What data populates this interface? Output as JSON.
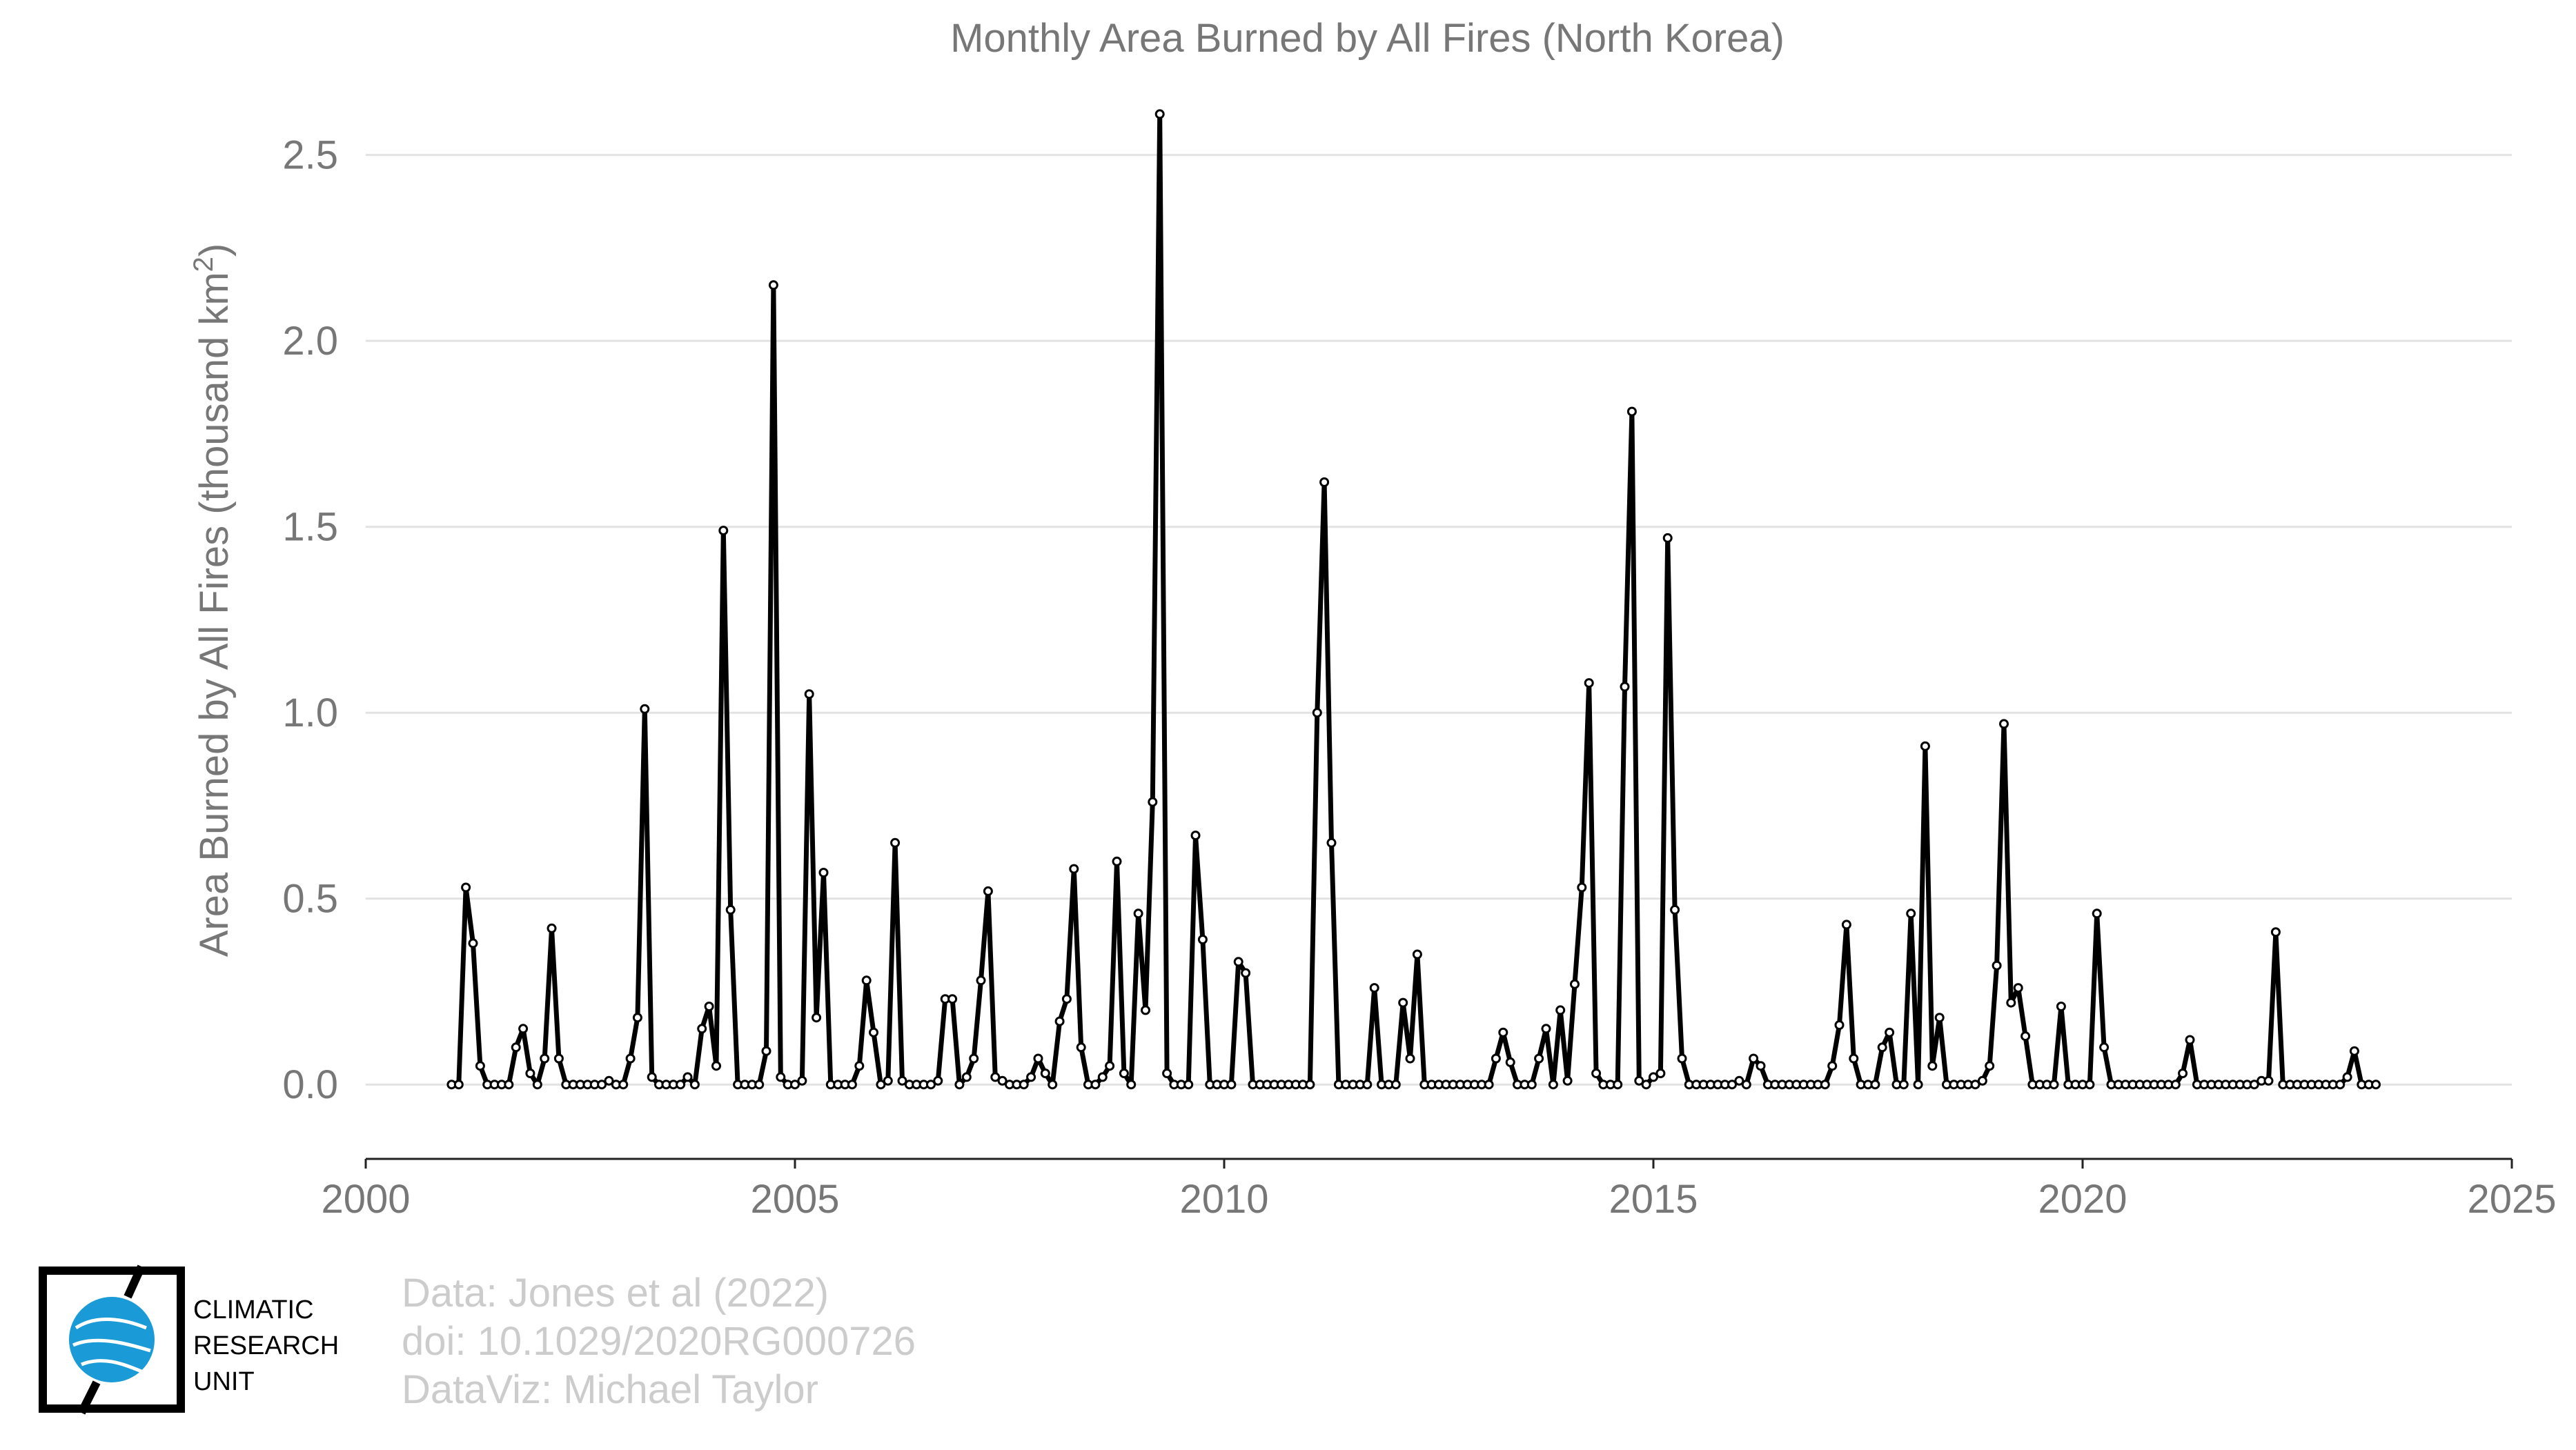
{
  "chart_data": {
    "type": "line",
    "title": "Monthly Area Burned by All Fires (North Korea)",
    "xlabel": "",
    "ylabel": "Area Burned by All Fires (thousand km²)",
    "xlim": [
      2000,
      2025
    ],
    "ylim": [
      -0.2,
      2.62
    ],
    "x_ticks": [
      "2000",
      "2005",
      "2010",
      "2015",
      "2020",
      "2025"
    ],
    "y_ticks": [
      "0.0",
      "0.5",
      "1.0",
      "1.5",
      "2.0",
      "2.5"
    ],
    "grid": "horizontal",
    "legend": "none",
    "line_color": "#000000",
    "x_start": "2001-01",
    "x_end": "2023-06",
    "series": [
      {
        "values": [
          0.0,
          0.0,
          0.53,
          0.38,
          0.05,
          0.0,
          0.0,
          0.0,
          0.0,
          0.1,
          0.15,
          0.03,
          0.0,
          0.07,
          0.42,
          0.07,
          0.0,
          0.0,
          0.0,
          0.0,
          0.0,
          0.0,
          0.01,
          0.0,
          0.0,
          0.07,
          0.18,
          1.01,
          0.02,
          0.0,
          0.0,
          0.0,
          0.0,
          0.02,
          0.0,
          0.15,
          0.21,
          0.05,
          1.49,
          0.47,
          0.0,
          0.0,
          0.0,
          0.0,
          0.09,
          2.15,
          0.02,
          0.0,
          0.0,
          0.01,
          1.05,
          0.18,
          0.57,
          0.0,
          0.0,
          0.0,
          0.0,
          0.05,
          0.28,
          0.14,
          0.0,
          0.01,
          0.65,
          0.01,
          0.0,
          0.0,
          0.0,
          0.0,
          0.01,
          0.23,
          0.23,
          0.0,
          0.02,
          0.07,
          0.28,
          0.52,
          0.02,
          0.01,
          0.0,
          0.0,
          0.0,
          0.02,
          0.07,
          0.03,
          0.0,
          0.17,
          0.23,
          0.58,
          0.1,
          0.0,
          0.0,
          0.02,
          0.05,
          0.6,
          0.03,
          0.0,
          0.46,
          0.2,
          0.76,
          2.61,
          0.03,
          0.0,
          0.0,
          0.0,
          0.67,
          0.39,
          0.0,
          0.0,
          0.0,
          0.0,
          0.33,
          0.3,
          0.0,
          0.0,
          0.0,
          0.0,
          0.0,
          0.0,
          0.0,
          0.0,
          0.0,
          1.0,
          1.62,
          0.65,
          0.0,
          0.0,
          0.0,
          0.0,
          0.0,
          0.26,
          0.0,
          0.0,
          0.0,
          0.22,
          0.07,
          0.35,
          0.0,
          0.0,
          0.0,
          0.0,
          0.0,
          0.0,
          0.0,
          0.0,
          0.0,
          0.0,
          0.07,
          0.14,
          0.06,
          0.0,
          0.0,
          0.0,
          0.07,
          0.15,
          0.0,
          0.2,
          0.01,
          0.27,
          0.53,
          1.08,
          0.03,
          0.0,
          0.0,
          0.0,
          1.07,
          1.81,
          0.01,
          0.0,
          0.02,
          0.03,
          1.47,
          0.47,
          0.07,
          0.0,
          0.0,
          0.0,
          0.0,
          0.0,
          0.0,
          0.0,
          0.01,
          0.0,
          0.07,
          0.05,
          0.0,
          0.0,
          0.0,
          0.0,
          0.0,
          0.0,
          0.0,
          0.0,
          0.0,
          0.05,
          0.16,
          0.43,
          0.07,
          0.0,
          0.0,
          0.0,
          0.1,
          0.14,
          0.0,
          0.0,
          0.46,
          0.0,
          0.91,
          0.05,
          0.18,
          0.0,
          0.0,
          0.0,
          0.0,
          0.0,
          0.01,
          0.05,
          0.32,
          0.97,
          0.22,
          0.26,
          0.13,
          0.0,
          0.0,
          0.0,
          0.0,
          0.21,
          0.0,
          0.0,
          0.0,
          0.0,
          0.46,
          0.1,
          0.0,
          0.0,
          0.0,
          0.0,
          0.0,
          0.0,
          0.0,
          0.0,
          0.0,
          0.0,
          0.03,
          0.12,
          0.0,
          0.0,
          0.0,
          0.0,
          0.0,
          0.0,
          0.0,
          0.0,
          0.0,
          0.01,
          0.01,
          0.41,
          0.0,
          0.0,
          0.0,
          0.0,
          0.0,
          0.0,
          0.0,
          0.0,
          0.0,
          0.02,
          0.09,
          0.0,
          0.0,
          0.0
        ]
      }
    ]
  },
  "footer": {
    "line1": "Data: Jones et al (2022)",
    "line2": "doi: 10.1029/2020RG000726",
    "line3": "DataViz: Michael Taylor"
  },
  "logo": {
    "line1": "CLIMATIC",
    "line2": "RESEARCH",
    "line3": "UNIT",
    "globe_color": "#1a9ad6"
  }
}
